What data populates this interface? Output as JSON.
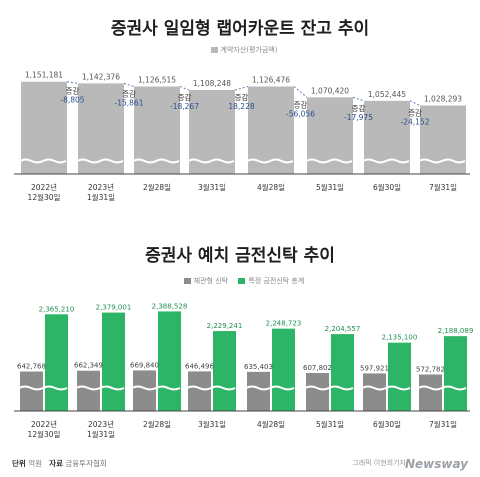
{
  "chart_data": [
    {
      "type": "bar",
      "title": "증권사 일임형 랩어카운트 잔고 추이",
      "legend": [
        "계약자산(평가금액)"
      ],
      "categories": [
        [
          "2022년",
          "12월30일"
        ],
        [
          "2023년",
          "1월31일"
        ],
        [
          "2월28일"
        ],
        [
          "3월31일"
        ],
        [
          "4월28일"
        ],
        [
          "5월31일"
        ],
        [
          "6월30일"
        ],
        [
          "7월31일"
        ]
      ],
      "values": [
        1151181,
        1142376,
        1126515,
        1108248,
        1126476,
        1070420,
        1052445,
        1028293
      ],
      "value_labels": [
        "1,151,181",
        "1,142,376",
        "1,126,515",
        "1,108,248",
        "1,126,476",
        "1,070,420",
        "1,052,445",
        "1,028,293"
      ],
      "change_label": "증감",
      "changes": [
        "-8,805",
        "-15,861",
        "-18,267",
        "18,228",
        "-56,056",
        "-17,975",
        "-24,152"
      ],
      "colors": {
        "bar": "#b9b9b9",
        "change_text": "#2a4f8f",
        "change_line": "#5a7fb8"
      }
    },
    {
      "type": "bar",
      "title": "증권사 예치 금전신탁 추이",
      "legend": [
        "재관형 신탁",
        "특정 금전신탁 총계"
      ],
      "categories": [
        [
          "2022년",
          "12월30일"
        ],
        [
          "2023년",
          "1월31일"
        ],
        [
          "2월28일"
        ],
        [
          "3월31일"
        ],
        [
          "4월28일"
        ],
        [
          "5월31일"
        ],
        [
          "6월30일"
        ],
        [
          "7월31일"
        ]
      ],
      "series": [
        {
          "name": "재관형 신탁",
          "values": [
            642768,
            662349,
            669840,
            646496,
            635403,
            607802,
            597921,
            572782
          ],
          "labels": [
            "642,768",
            "662,349",
            "669,840",
            "646,496",
            "635,403",
            "607,802",
            "597,921",
            "572,782"
          ]
        },
        {
          "name": "특정 금전신탁 총계",
          "values": [
            2365210,
            2379001,
            2388528,
            2229241,
            2248723,
            2204557,
            2135100,
            2188089
          ],
          "labels": [
            "2,365,210",
            "2,379,001",
            "2,388,528",
            "2,229,241",
            "2,248,723",
            "2,204,557",
            "2,135,100",
            "2,188,089"
          ]
        }
      ],
      "colors": {
        "series1": "#8c8c8c",
        "series2": "#2cb566"
      }
    }
  ],
  "footer": {
    "unit_key": "단위",
    "unit": "억원",
    "source_key": "자료",
    "source": "금융투자협회",
    "credit": "그래픽 이현희기자",
    "brand": "Newsway"
  }
}
